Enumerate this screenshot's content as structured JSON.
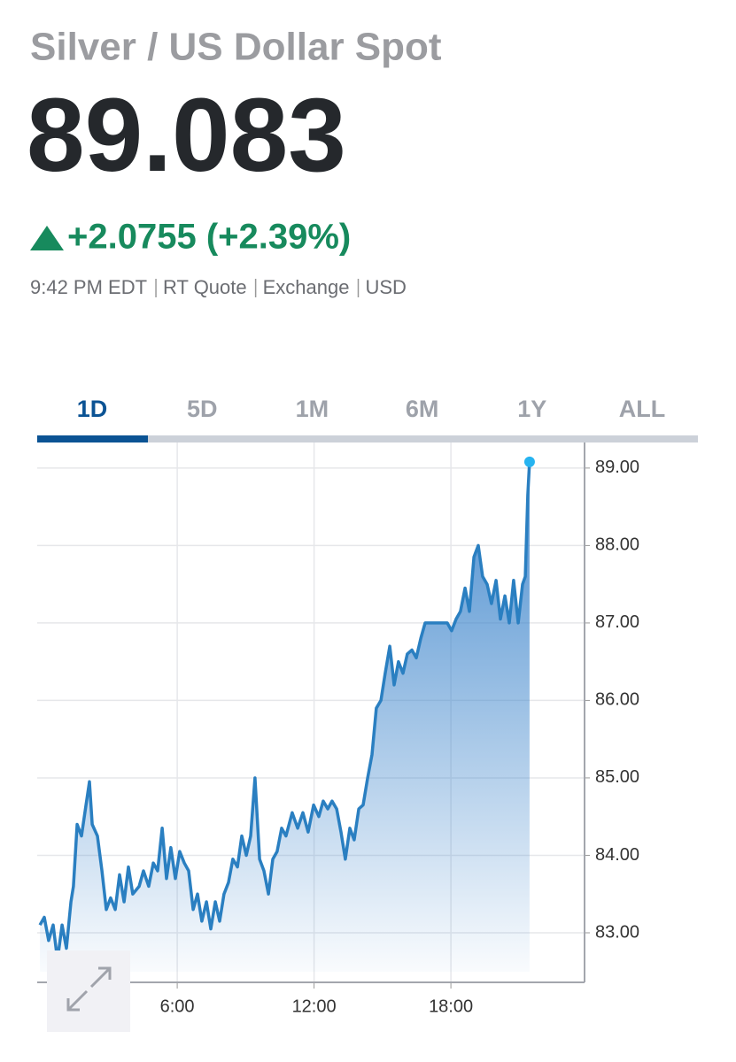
{
  "header": {
    "title": "Silver / US Dollar Spot",
    "price": "89.083",
    "change": "+2.0755 (+2.39%)",
    "meta": [
      "9:42 PM EDT",
      "RT Quote",
      "Exchange",
      "USD"
    ]
  },
  "tabs": [
    "1D",
    "5D",
    "1M",
    "6M",
    "1Y",
    "ALL"
  ],
  "chart_data": {
    "type": "area",
    "color": "#2a7fc1",
    "grid": true,
    "yaxis_position": "right",
    "x": [
      -0.02,
      0.17,
      0.36,
      0.56,
      0.75,
      0.95,
      1.14,
      1.34,
      1.45,
      1.61,
      1.8,
      2.0,
      2.15,
      2.27,
      2.5,
      2.7,
      2.89,
      3.08,
      3.28,
      3.47,
      3.67,
      3.86,
      4.05,
      4.33,
      4.52,
      4.75,
      4.95,
      5.14,
      5.34,
      5.53,
      5.72,
      5.92,
      6.11,
      6.31,
      6.5,
      6.7,
      6.89,
      7.08,
      7.28,
      7.47,
      7.67,
      7.86,
      8.05,
      8.25,
      8.44,
      8.64,
      8.83,
      9.03,
      9.22,
      9.41,
      9.61,
      9.8,
      10.0,
      10.19,
      10.38,
      10.58,
      10.77,
      11.04,
      11.28,
      11.51,
      11.74,
      11.98,
      12.21,
      12.4,
      12.6,
      12.79,
      12.99,
      13.18,
      13.37,
      13.57,
      13.76,
      13.96,
      14.15,
      14.35,
      14.54,
      14.73,
      14.93,
      15.12,
      15.32,
      15.51,
      15.7,
      15.9,
      16.09,
      16.29,
      16.48,
      16.68,
      16.87,
      17.26,
      17.65,
      17.84,
      18.03,
      18.23,
      18.42,
      18.62,
      18.81,
      19.01,
      19.2,
      19.39,
      19.59,
      19.78,
      19.98,
      20.17,
      20.37,
      20.56,
      20.75,
      20.95,
      21.14,
      21.26,
      21.37,
      21.45
    ],
    "values": [
      83.1,
      83.2,
      82.9,
      83.1,
      82.65,
      83.1,
      82.8,
      83.4,
      83.6,
      84.4,
      84.25,
      84.65,
      84.95,
      84.4,
      84.25,
      83.8,
      83.3,
      83.45,
      83.3,
      83.75,
      83.4,
      83.85,
      83.5,
      83.6,
      83.8,
      83.6,
      83.9,
      83.8,
      84.35,
      83.7,
      84.1,
      83.7,
      84.05,
      83.9,
      83.8,
      83.3,
      83.5,
      83.15,
      83.4,
      83.05,
      83.4,
      83.15,
      83.5,
      83.65,
      83.95,
      83.85,
      84.25,
      84.0,
      84.25,
      85.0,
      83.95,
      83.8,
      83.5,
      83.95,
      84.05,
      84.35,
      84.25,
      84.55,
      84.35,
      84.55,
      84.3,
      84.65,
      84.5,
      84.7,
      84.6,
      84.7,
      84.6,
      84.3,
      83.95,
      84.35,
      84.2,
      84.6,
      84.65,
      85.0,
      85.3,
      85.9,
      86.0,
      86.35,
      86.7,
      86.2,
      86.5,
      86.35,
      86.6,
      86.65,
      86.55,
      86.8,
      87.0,
      87.0,
      87.0,
      87.0,
      86.9,
      87.05,
      87.15,
      87.45,
      87.15,
      87.85,
      88.0,
      87.6,
      87.5,
      87.25,
      87.55,
      87.05,
      87.35,
      87.0,
      87.55,
      87.0,
      87.5,
      87.6,
      88.65,
      89.08
    ],
    "xlim": [
      -0.14,
      23.86
    ],
    "xticks": [
      {
        "value": 6,
        "label": "6:00"
      },
      {
        "value": 12,
        "label": "12:00"
      },
      {
        "value": 18,
        "label": "18:00"
      }
    ],
    "ylim": [
      82.36,
      89.33
    ],
    "yticks": [
      {
        "value": 83,
        "label": "83.00"
      },
      {
        "value": 84,
        "label": "84.00"
      },
      {
        "value": 85,
        "label": "85.00"
      },
      {
        "value": 86,
        "label": "86.00"
      },
      {
        "value": 87,
        "label": "87.00"
      },
      {
        "value": 88,
        "label": "88.00"
      },
      {
        "value": 89,
        "label": "89.00"
      }
    ]
  }
}
